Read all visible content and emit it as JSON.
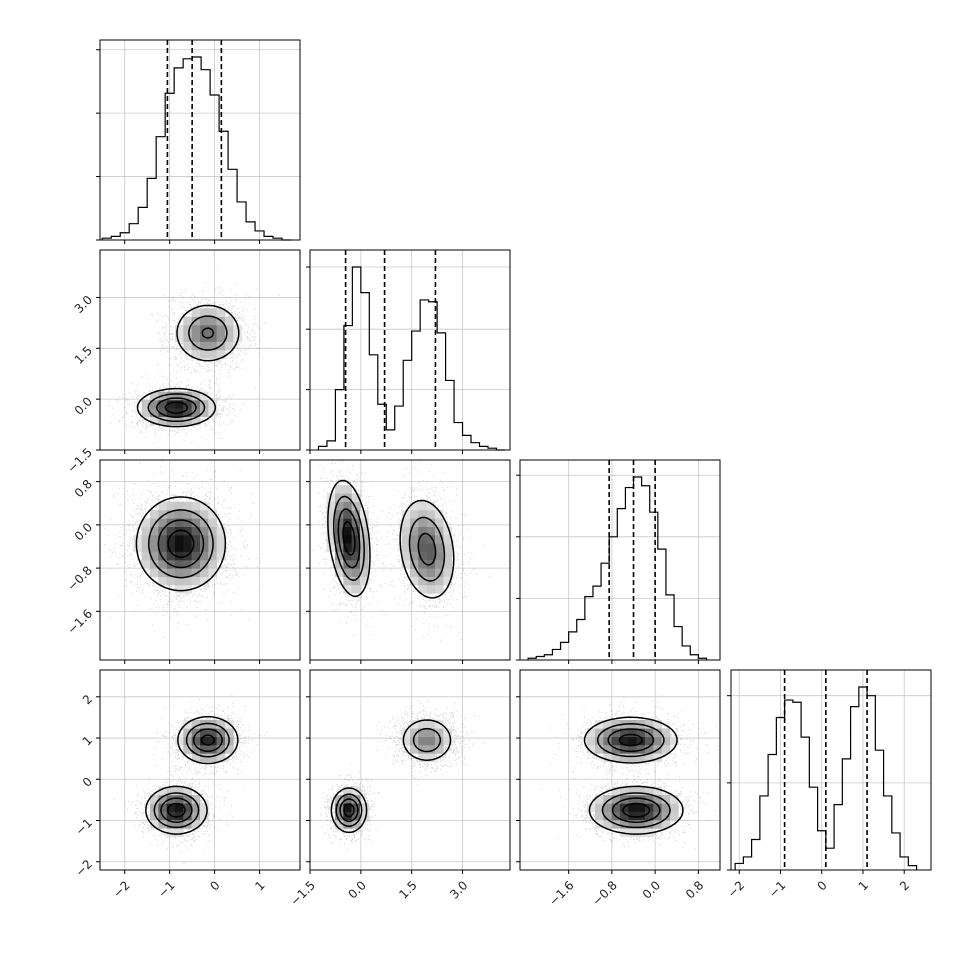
{
  "chart_data": {
    "type": "corner",
    "grid": true,
    "parameters": [
      {
        "range": [
          -2.55,
          1.9
        ],
        "tick_values": [
          -2,
          -1,
          0,
          1
        ],
        "tick_labels": [
          "−2",
          "−1",
          "0",
          "1"
        ],
        "quantiles": [
          -1.05,
          -0.5,
          0.15
        ],
        "hist_bin_width": 0.2
      },
      {
        "range": [
          -1.5,
          4.4
        ],
        "tick_values": [
          -1.5,
          0.0,
          1.5,
          3.0
        ],
        "tick_labels": [
          "−1.5",
          "0.0",
          "1.5",
          "3.0"
        ],
        "quantiles": [
          -0.45,
          0.7,
          2.2
        ],
        "hist_bin_width": 0.25
      },
      {
        "range": [
          -2.5,
          1.2
        ],
        "tick_values": [
          -1.6,
          -0.8,
          0.0,
          0.8
        ],
        "tick_labels": [
          "−1.6",
          "−0.8",
          "0.0",
          "0.8"
        ],
        "quantiles": [
          -0.85,
          -0.4,
          0.0
        ],
        "hist_bin_width": 0.15
      },
      {
        "range": [
          -2.2,
          2.65
        ],
        "tick_values": [
          -2,
          -1,
          0,
          1,
          2
        ],
        "tick_labels": [
          "−2",
          "−1",
          "0",
          "1",
          "2"
        ],
        "quantiles": [
          -0.9,
          0.1,
          1.1
        ],
        "hist_bin_width": 0.2
      }
    ],
    "histograms": [
      {
        "param": 0,
        "edges": [
          -2.5,
          -2.3,
          -2.1,
          -1.9,
          -1.7,
          -1.5,
          -1.3,
          -1.1,
          -0.9,
          -0.7,
          -0.5,
          -0.3,
          -0.1,
          0.1,
          0.3,
          0.5,
          0.7,
          0.9,
          1.1,
          1.3,
          1.5,
          1.7
        ],
        "counts": [
          1,
          2,
          4,
          9,
          18,
          34,
          57,
          81,
          95,
          100,
          101,
          94,
          80,
          60,
          39,
          21,
          10,
          5,
          2,
          1,
          0
        ],
        "y_ticks": [
          0,
          35,
          70,
          105
        ]
      },
      {
        "param": 1,
        "edges": [
          -1.25,
          -1.0,
          -0.75,
          -0.5,
          -0.25,
          0.0,
          0.25,
          0.5,
          0.75,
          1.0,
          1.25,
          1.5,
          1.75,
          2.0,
          2.25,
          2.5,
          2.75,
          3.0,
          3.25,
          3.5,
          3.75,
          4.0,
          4.25
        ],
        "counts": [
          2,
          5,
          33,
          68,
          100,
          86,
          52,
          25,
          11,
          24,
          49,
          65,
          82,
          81,
          64,
          38,
          15,
          8,
          4,
          2,
          1,
          0
        ],
        "y_ticks": [
          0,
          33,
          66,
          100
        ]
      },
      {
        "param": 2,
        "edges": [
          -2.35,
          -2.2,
          -2.05,
          -1.9,
          -1.75,
          -1.6,
          -1.45,
          -1.3,
          -1.15,
          -1.0,
          -0.85,
          -0.7,
          -0.55,
          -0.4,
          -0.25,
          -0.1,
          0.05,
          0.2,
          0.35,
          0.5,
          0.65,
          0.8,
          0.95
        ],
        "counts": [
          1,
          2,
          3,
          6,
          10,
          16,
          23,
          36,
          42,
          55,
          70,
          86,
          98,
          104,
          99,
          84,
          63,
          37,
          19,
          8,
          3,
          1
        ],
        "y_ticks": [
          0,
          35,
          70,
          105
        ]
      },
      {
        "param": 3,
        "edges": [
          -2.1,
          -1.9,
          -1.7,
          -1.5,
          -1.3,
          -1.1,
          -0.9,
          -0.7,
          -0.5,
          -0.3,
          -0.1,
          0.1,
          0.3,
          0.5,
          0.7,
          0.9,
          1.1,
          1.3,
          1.5,
          1.7,
          1.9,
          2.1,
          2.3
        ],
        "counts": [
          3,
          6,
          14,
          34,
          53,
          70,
          78,
          77,
          61,
          38,
          18,
          10,
          30,
          51,
          75,
          84,
          80,
          55,
          34,
          17,
          6,
          2
        ],
        "y_ticks": [
          0,
          40,
          80
        ]
      }
    ],
    "pairs": [
      {
        "x_param": 0,
        "y_param": 1,
        "modes": [
          {
            "center": [
              -0.85,
              -0.25
            ],
            "sd": [
              0.42,
              0.27
            ],
            "rho": 0.0,
            "weight": 0.52
          },
          {
            "center": [
              -0.15,
              1.95
            ],
            "sd": [
              0.38,
              0.45
            ],
            "rho": 0.0,
            "weight": 0.48
          }
        ]
      },
      {
        "x_param": 0,
        "y_param": 2,
        "modes": [
          {
            "center": [
              -0.75,
              -0.35
            ],
            "sd": [
              0.48,
              0.42
            ],
            "rho": 0.0,
            "weight": 1.0
          }
        ]
      },
      {
        "x_param": 0,
        "y_param": 3,
        "modes": [
          {
            "center": [
              -0.85,
              -0.75
            ],
            "sd": [
              0.33,
              0.28
            ],
            "rho": 0.0,
            "weight": 0.52
          },
          {
            "center": [
              -0.15,
              0.95
            ],
            "sd": [
              0.33,
              0.28
            ],
            "rho": 0.0,
            "weight": 0.48
          }
        ]
      },
      {
        "x_param": 1,
        "y_param": 2,
        "modes": [
          {
            "center": [
              -0.35,
              -0.25
            ],
            "sd": [
              0.3,
              0.52
            ],
            "rho": -0.3,
            "weight": 0.52
          },
          {
            "center": [
              1.95,
              -0.45
            ],
            "sd": [
              0.42,
              0.48
            ],
            "rho": -0.2,
            "weight": 0.48
          }
        ]
      },
      {
        "x_param": 1,
        "y_param": 3,
        "modes": [
          {
            "center": [
              -0.35,
              -0.75
            ],
            "sd": [
              0.25,
              0.26
            ],
            "rho": 0.0,
            "weight": 0.52
          },
          {
            "center": [
              1.95,
              0.95
            ],
            "sd": [
              0.4,
              0.28
            ],
            "rho": 0.0,
            "weight": 0.48
          }
        ]
      },
      {
        "x_param": 2,
        "y_param": 3,
        "modes": [
          {
            "center": [
              -0.35,
              -0.75
            ],
            "sd": [
              0.42,
              0.28
            ],
            "rho": 0.0,
            "weight": 0.52
          },
          {
            "center": [
              -0.45,
              0.95
            ],
            "sd": [
              0.42,
              0.27
            ],
            "rho": 0.0,
            "weight": 0.48
          }
        ]
      }
    ],
    "scatter_color": "#000000",
    "contour_levels": [
      0.12,
      0.33,
      0.58,
      0.84
    ],
    "contour_color": "#000000",
    "grid_color": "#c8c8c8"
  }
}
